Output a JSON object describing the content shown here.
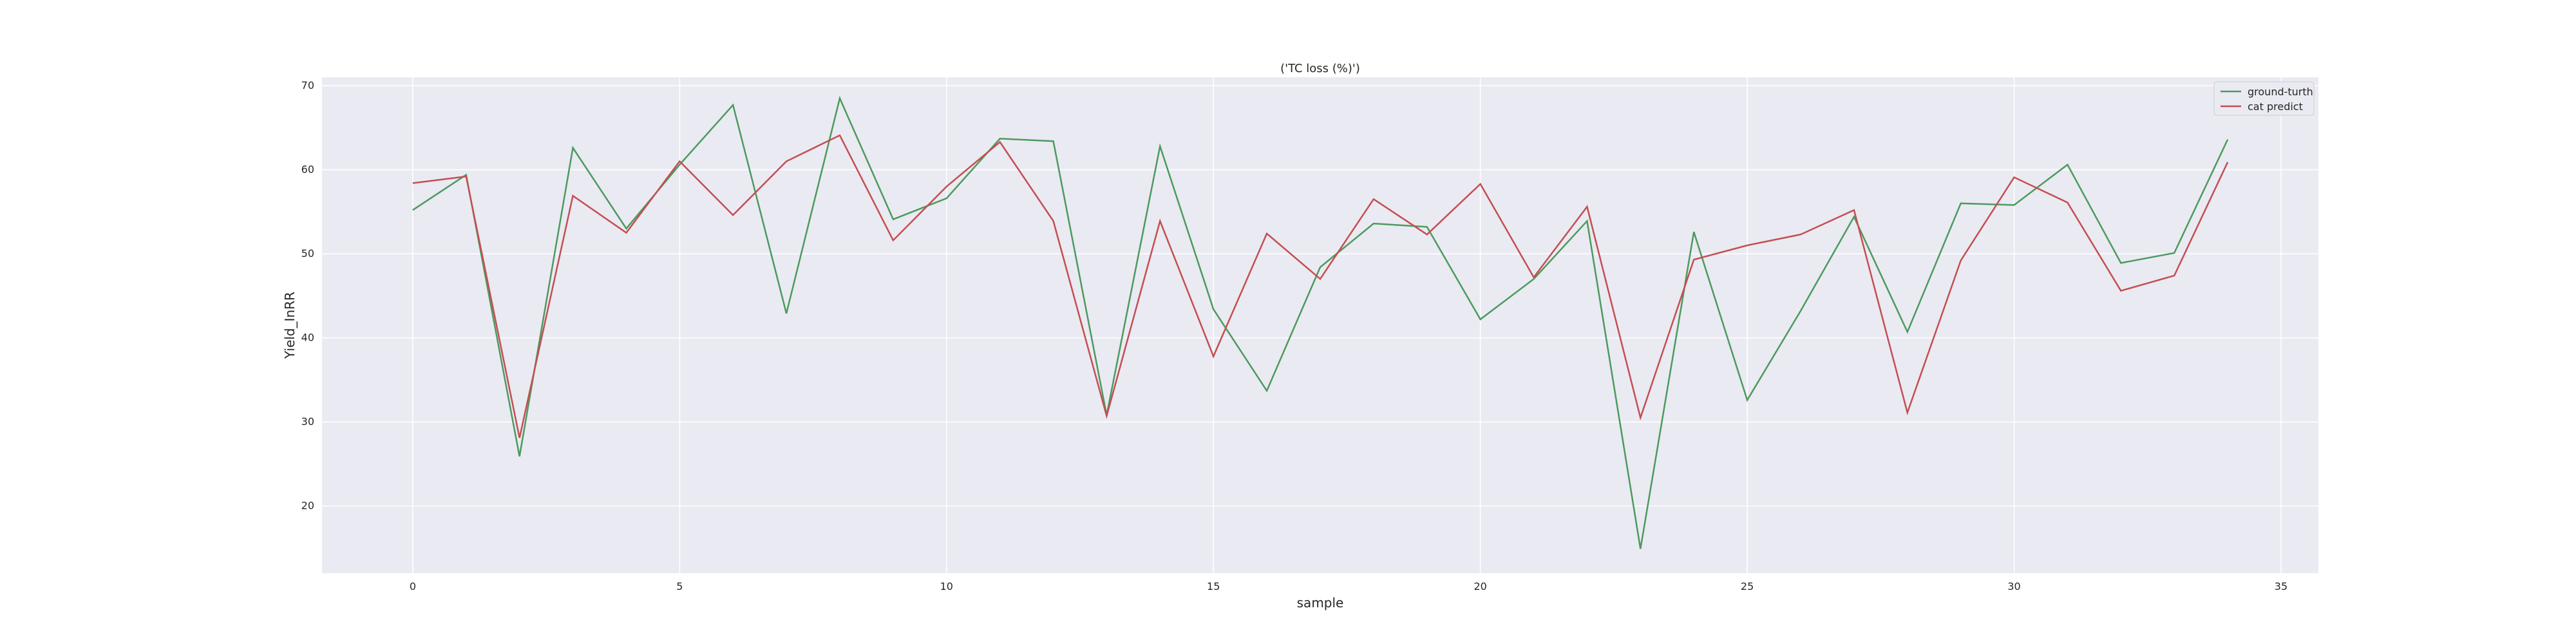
{
  "chart_data": {
    "type": "line",
    "title": "('TC loss (%)')",
    "xlabel": "sample",
    "ylabel": "Yield_InRR",
    "xlim": [
      -1.7,
      35.7
    ],
    "ylim": [
      12,
      71
    ],
    "xticks": [
      0,
      5,
      10,
      15,
      20,
      25,
      30,
      35
    ],
    "yticks": [
      20,
      30,
      40,
      50,
      60,
      70
    ],
    "grid": true,
    "legend_position": "top-right",
    "x": [
      0,
      1,
      2,
      3,
      4,
      5,
      6,
      7,
      8,
      9,
      10,
      11,
      12,
      13,
      14,
      15,
      16,
      17,
      18,
      19,
      20,
      21,
      22,
      23,
      24,
      25,
      26,
      27,
      28,
      29,
      30,
      31,
      32,
      33,
      34
    ],
    "series": [
      {
        "name": "ground-turth",
        "color": "#4c9a5e",
        "values": [
          55.2,
          59.4,
          25.9,
          62.6,
          53.0,
          60.6,
          67.7,
          42.9,
          68.5,
          54.1,
          56.6,
          63.7,
          63.4,
          30.8,
          62.8,
          43.4,
          33.7,
          48.4,
          53.6,
          53.2,
          42.2,
          47.0,
          53.9,
          14.9,
          52.6,
          32.6,
          43.2,
          54.4,
          40.7,
          56.0,
          55.8,
          60.6,
          48.9,
          50.1,
          63.6
        ]
      },
      {
        "name": "cat predict",
        "color": "#c44e52",
        "values": [
          58.4,
          59.2,
          28.1,
          56.9,
          52.5,
          61.0,
          54.6,
          61.0,
          64.1,
          51.6,
          58.0,
          63.3,
          53.9,
          30.7,
          53.9,
          37.8,
          52.4,
          47.0,
          56.5,
          52.3,
          58.3,
          47.2,
          55.6,
          30.5,
          49.3,
          51.0,
          52.3,
          55.2,
          31.1,
          49.2,
          59.1,
          56.1,
          45.6,
          47.4,
          60.9
        ]
      }
    ]
  },
  "colors": {
    "plot_background": "#eaeaf2",
    "grid": "#ffffff",
    "text": "#262626"
  }
}
